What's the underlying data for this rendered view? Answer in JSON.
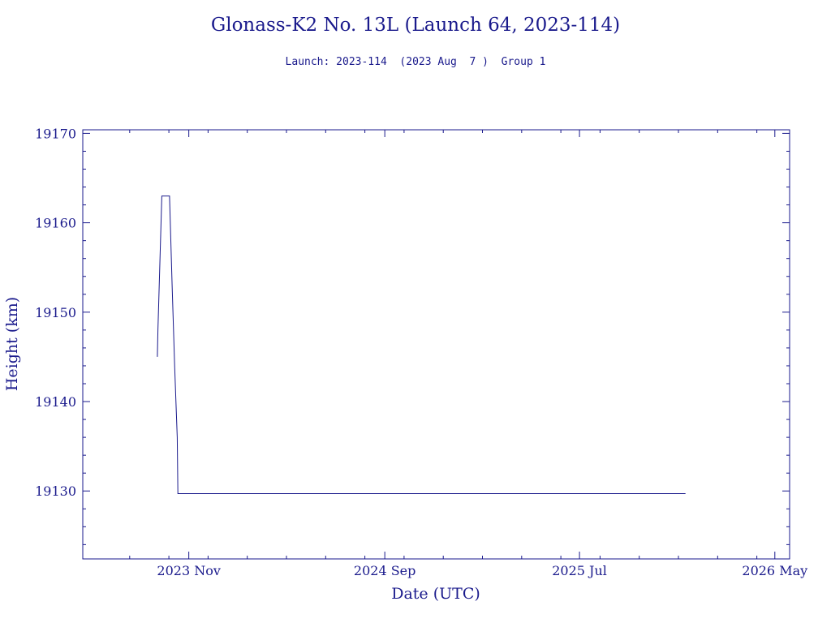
{
  "colors": {
    "ink": "#1a1a8c",
    "background": "#ffffff"
  },
  "chart_data": {
    "type": "line",
    "title": "Glonass-K2 No. 13L (Launch 64, 2023-114)",
    "subtitle": "Launch: 2023-114  (2023 Aug  7 )  Group 1",
    "xlabel": "Date (UTC)",
    "ylabel": "Height (km)",
    "x_type": "date",
    "xlim": [
      "2023-05-20",
      "2026-05-24"
    ],
    "ylim": [
      19122.4,
      19170.4
    ],
    "x_ticks": [
      {
        "date": "2023-11-01",
        "label": "2023 Nov"
      },
      {
        "date": "2024-09-01",
        "label": "2024 Sep"
      },
      {
        "date": "2025-07-01",
        "label": "2025 Jul"
      },
      {
        "date": "2026-05-01",
        "label": "2026 May"
      }
    ],
    "y_ticks": [
      19130,
      19140,
      19150,
      19160,
      19170
    ],
    "grid": false,
    "legend": "none",
    "series": [
      {
        "x": [
          "2023-09-13",
          "2023-09-14",
          "2023-09-18",
          "2023-09-20",
          "2023-10-02",
          "2023-10-06",
          "2023-10-10",
          "2023-10-14",
          "2023-10-15",
          "2024-11-02",
          "2025-12-13"
        ],
        "y": [
          19145.0,
          19148.0,
          19158.0,
          19163.0,
          19163.0,
          19153.0,
          19144.0,
          19136.0,
          19129.7,
          19129.7,
          19129.7
        ]
      }
    ]
  }
}
